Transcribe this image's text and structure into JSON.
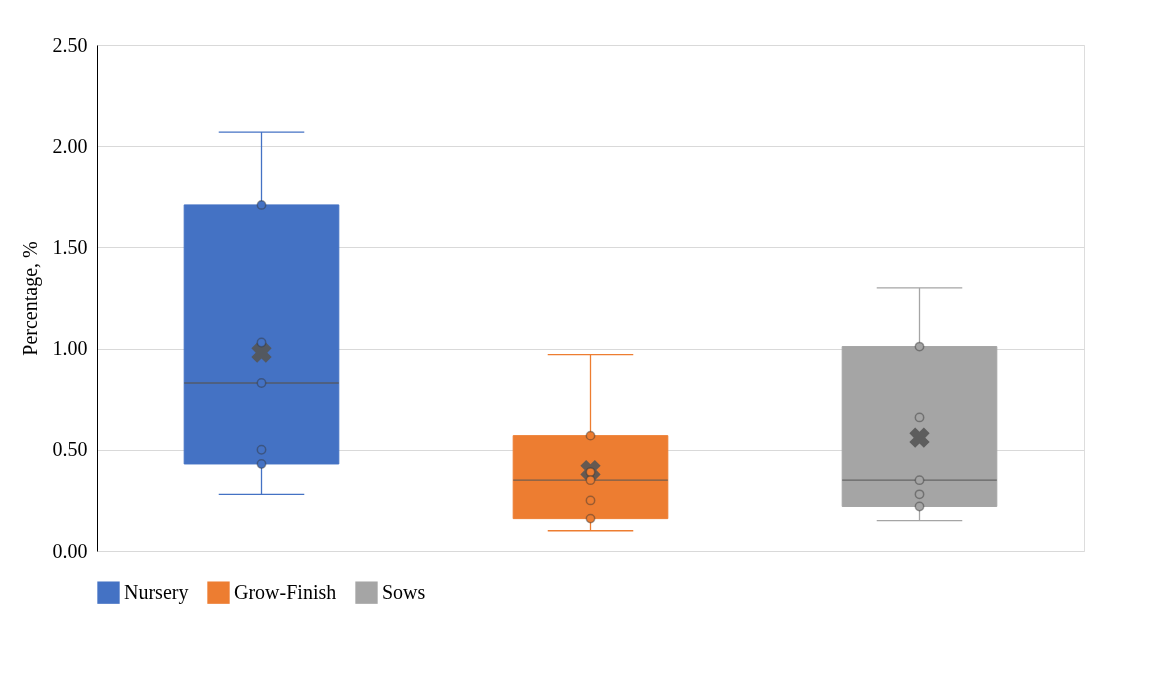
{
  "chart_data": {
    "type": "box",
    "ylabel": "Percentage, %",
    "categories": [
      null,
      null,
      null
    ],
    "ylim": [
      0,
      2.5
    ],
    "yticks": [
      {
        "value": 0,
        "label": "0.00"
      },
      {
        "value": 0.5,
        "label": "0.50"
      },
      {
        "value": 1,
        "label": "1.00"
      },
      {
        "value": 1.5,
        "label": "1.50"
      },
      {
        "value": 2,
        "label": "2.00"
      },
      {
        "value": 2.5,
        "label": "2.50"
      }
    ],
    "grid": "y",
    "legend": "bottom",
    "tick_labels": "y",
    "marker": "circle",
    "series": [
      {
        "name": "Nursery",
        "color": "#4472c4",
        "boxes": [
          {
            "low": 0.28,
            "q1": 0.43,
            "median": 0.83,
            "q3": 1.71,
            "high": 2.07,
            "mean": 0.98
          },
          null,
          null
        ]
      },
      {
        "name": "Grow-Finish",
        "color": "#ed7d31",
        "boxes": [
          null,
          {
            "low": 0.1,
            "q1": 0.16,
            "median": 0.35,
            "q3": 0.57,
            "high": 0.97,
            "mean": 0.4
          },
          null
        ]
      },
      {
        "name": "Sows",
        "color": "#a5a5a5",
        "boxes": [
          null,
          null,
          {
            "low": 0.15,
            "q1": 0.22,
            "median": 0.35,
            "q3": 1.01,
            "high": 1.3,
            "mean": 0.56
          }
        ]
      },
      {
        "type": "scatter",
        "colors": [
          "#4472c4",
          "#ed7d31",
          "#a5a5a5"
        ],
        "values": [
          1.71,
          0.57,
          1.01
        ]
      },
      {
        "type": "scatter",
        "colors": [
          "#4472c4",
          "#ed7d31",
          "#a5a5a5"
        ],
        "values": [
          1.03,
          0.39,
          0.66
        ]
      },
      {
        "type": "scatter",
        "colors": [
          "#4472c4",
          "#ed7d31",
          "#a5a5a5"
        ],
        "values": [
          0.83,
          0.35,
          0.35
        ]
      },
      {
        "type": "scatter",
        "colors": [
          "#4472c4",
          "#ed7d31",
          "#a5a5a5"
        ],
        "values": [
          0.5,
          0.25,
          0.28
        ]
      },
      {
        "type": "scatter",
        "colors": [
          "#4472c4",
          "#ed7d31",
          "#a5a5a5"
        ],
        "values": [
          0.43,
          0.16,
          0.22
        ]
      }
    ]
  }
}
